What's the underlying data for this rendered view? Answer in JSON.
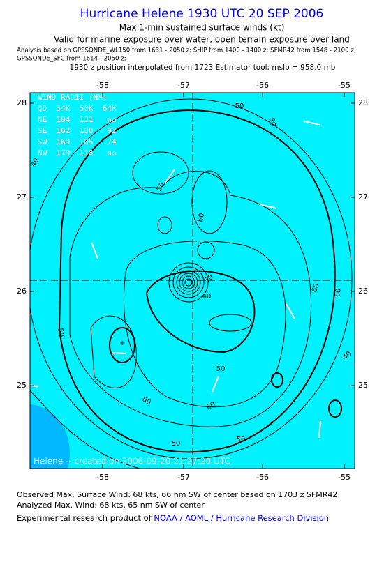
{
  "header": {
    "title": "Hurricane Helene 1930 UTC 20 SEP 2006",
    "subtitle": "Max 1-min sustained surface winds (kt)",
    "validity": "Valid for marine exposure over water, open terrain exposure over land",
    "sources_line1": "Analysis based on  GPSSONDE_WL150 from 1631 - 2050 z;  SHIP from 1400 - 1400 z;  SFMR42 from 1548 - 2100 z;",
    "sources_line2": "GPSSONDE_SFC from 1614 - 2050 z;",
    "position_note": "1930 z position interpolated from 1723 Estimator tool; mslp = 958.0 mb"
  },
  "map": {
    "x_ticks": [
      "-58",
      "-57",
      "-56",
      "-55"
    ],
    "y_ticks": [
      "28",
      "27",
      "26",
      "25"
    ],
    "wind_radii": [
      "WIND RADII (NM)",
      "QD  34K  50K  64K",
      "NE  184  131   no",
      "SE  162  108   92",
      "SW  169  105   74",
      "NW  179  118   no"
    ],
    "contour_labels": [
      "50",
      "40",
      "50",
      "50",
      "60",
      "60",
      "60",
      "50",
      "40",
      "50",
      "60",
      "50",
      "50",
      "50",
      "50",
      "40"
    ],
    "credit": "Helene -- created on 2006-09-20 21:27:20 UTC"
  },
  "footer": {
    "observed": "Observed Max. Surface Wind: 68 kts, 66 nm SW of center based on 1703 z SFMR42",
    "analyzed": "Analyzed Max. Wind: 68 kts, 65 nm SW of center",
    "product_prefix": "Experimental research product of ",
    "product_link": "NOAA / AOML / Hurricane Research Division"
  }
}
